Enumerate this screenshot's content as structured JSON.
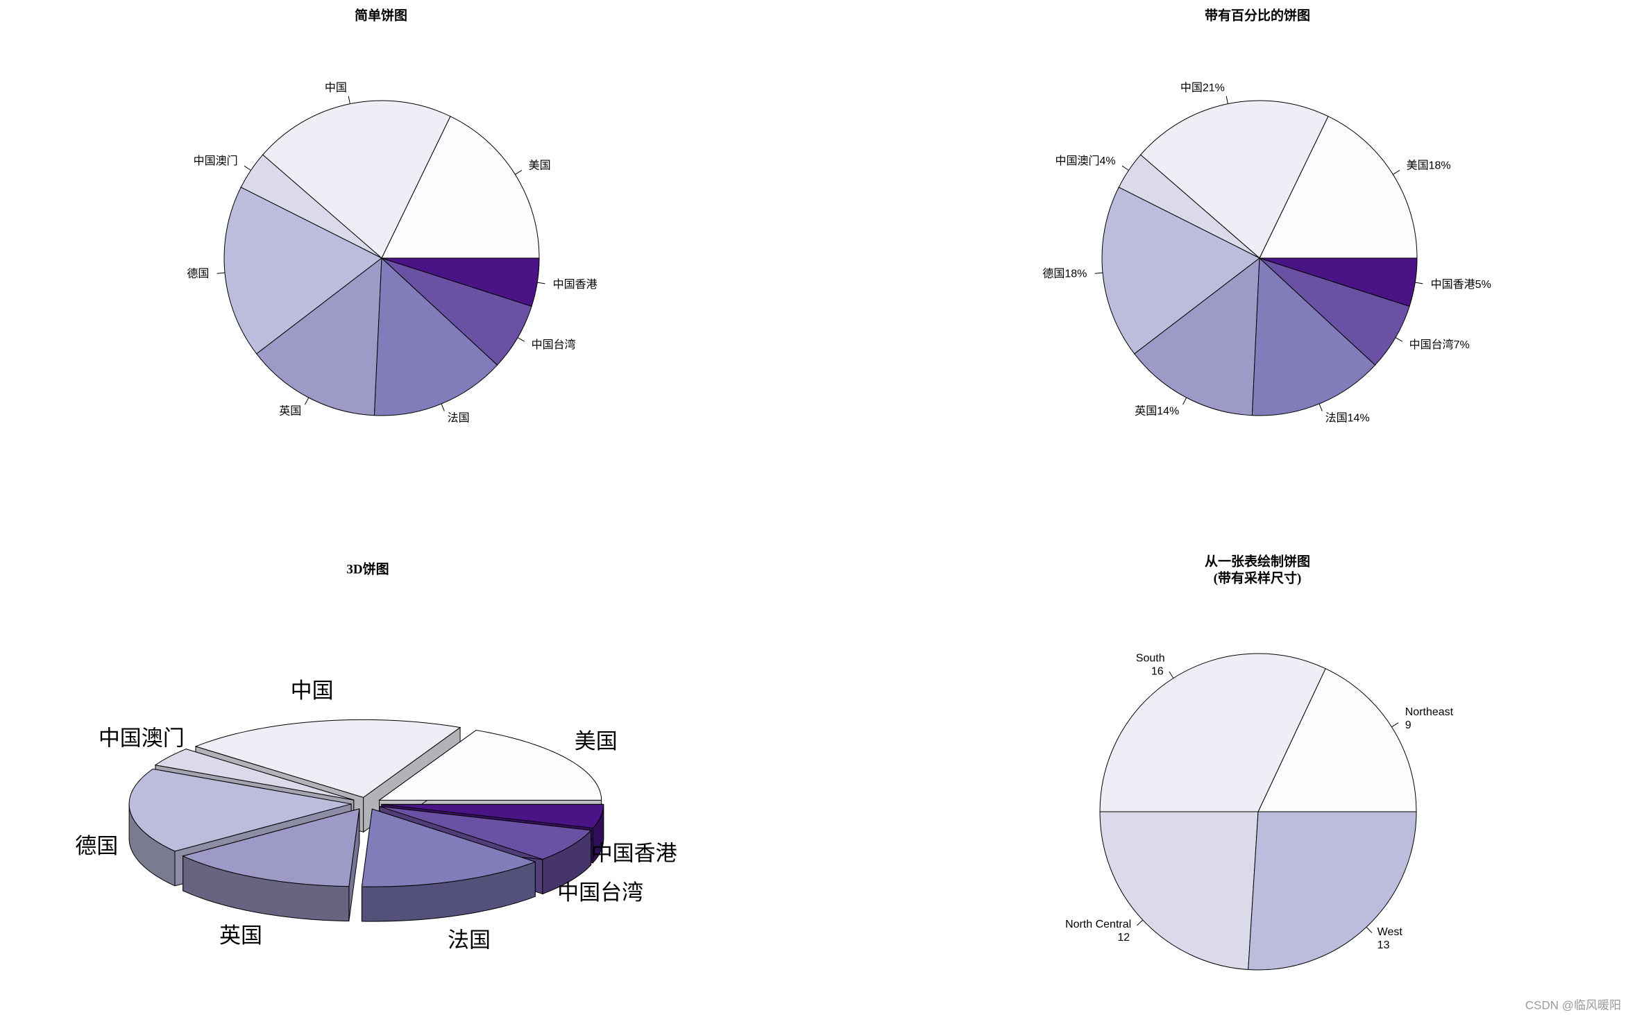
{
  "chart_data": [
    {
      "type": "pie",
      "title": "简单饼图",
      "categories": [
        "美国",
        "中国",
        "中国澳门",
        "德国",
        "英国",
        "法国",
        "中国台湾",
        "中国香港"
      ],
      "values": [
        18,
        21,
        4,
        18,
        14,
        14,
        7,
        5
      ],
      "colors": [
        "#FCFBFD",
        "#EFEDF5",
        "#DADAEB",
        "#BCBDDC",
        "#9E9AC8",
        "#807DBA",
        "#6A51A3",
        "#4A1486"
      ]
    },
    {
      "type": "pie",
      "title": "带有百分比的饼图",
      "categories": [
        "美国18%",
        "中国21%",
        "中国澳门4%",
        "德国18%",
        "英国14%",
        "法国14%",
        "中国台湾7%",
        "中国香港5%"
      ],
      "values": [
        18,
        21,
        4,
        18,
        14,
        14,
        7,
        5
      ],
      "colors": [
        "#FCFBFD",
        "#EFEDF5",
        "#DADAEB",
        "#BCBDDC",
        "#9E9AC8",
        "#807DBA",
        "#6A51A3",
        "#4A1486"
      ]
    },
    {
      "type": "pie3d",
      "title": "3D饼图",
      "categories": [
        "美国",
        "中国",
        "中国澳门",
        "德国",
        "英国",
        "法国",
        "中国台湾",
        "中国香港"
      ],
      "values": [
        18,
        21,
        4,
        18,
        14,
        14,
        7,
        5
      ],
      "colors": [
        "#FCFBFD",
        "#EFEDF5",
        "#DADAEB",
        "#BCBDDC",
        "#9E9AC8",
        "#807DBA",
        "#6A51A3",
        "#4A1486"
      ]
    },
    {
      "type": "pie",
      "title": [
        "从一张表绘制饼图",
        "(带有采样尺寸)"
      ],
      "categories": [
        "Northeast",
        "South",
        "North Central",
        "West"
      ],
      "values": [
        9,
        16,
        12,
        13
      ],
      "value_text": true,
      "colors": [
        "#FCFBFD",
        "#EFEDF5",
        "#DADAEB",
        "#BCBDDC"
      ]
    }
  ],
  "watermark": "CSDN @临风暖阳"
}
